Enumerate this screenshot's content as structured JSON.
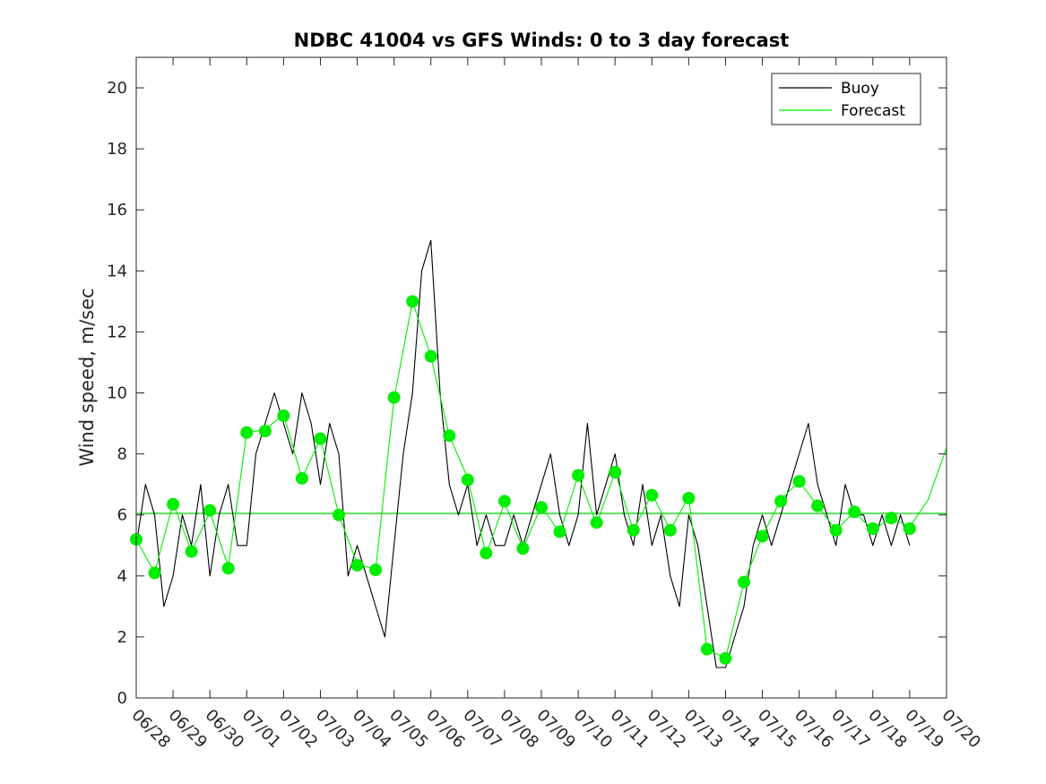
{
  "chart_data": {
    "type": "line",
    "title": "NDBC 41004 vs GFS Winds: 0 to 3 day forecast",
    "xlabel": "",
    "ylabel": "Wind speed, m/sec",
    "x_ticks": [
      "06/28",
      "06/29",
      "06/30",
      "07/01",
      "07/02",
      "07/03",
      "07/04",
      "07/05",
      "07/06",
      "07/07",
      "07/08",
      "07/09",
      "07/10",
      "07/11",
      "07/12",
      "07/13",
      "07/14",
      "07/15",
      "07/16",
      "07/17",
      "07/18",
      "07/19",
      "07/20"
    ],
    "x_range_days": [
      0,
      22
    ],
    "ylim": [
      0,
      21
    ],
    "y_ticks": [
      0,
      2,
      4,
      6,
      8,
      10,
      12,
      14,
      16,
      18,
      20
    ],
    "grid": false,
    "legend": {
      "location": "top-right",
      "entries": [
        {
          "name": "Buoy",
          "color": "#000000"
        },
        {
          "name": "Forecast",
          "color": "#00ee00"
        }
      ]
    },
    "mean_line": {
      "y": 6.05,
      "color": "#00cc00"
    },
    "series": [
      {
        "name": "Buoy",
        "color": "#000000",
        "x_day_offsets": [
          0,
          0.25,
          0.5,
          0.75,
          1,
          1.25,
          1.5,
          1.75,
          2,
          2.25,
          2.5,
          2.75,
          3,
          3.25,
          3.5,
          3.75,
          4,
          4.25,
          4.5,
          4.75,
          5,
          5.25,
          5.5,
          5.75,
          6,
          6.25,
          6.5,
          6.75,
          7,
          7.25,
          7.5,
          7.75,
          8,
          8.25,
          8.5,
          8.75,
          9,
          9.25,
          9.5,
          9.75,
          10,
          10.25,
          10.5,
          10.75,
          11,
          11.25,
          11.5,
          11.75,
          12,
          12.25,
          12.5,
          12.75,
          13,
          13.25,
          13.5,
          13.75,
          14,
          14.25,
          14.5,
          14.75,
          15,
          15.25,
          15.5,
          15.75,
          16,
          16.25,
          16.5,
          16.75,
          17,
          17.25,
          17.5,
          17.75,
          18,
          18.25,
          18.5,
          18.75,
          19,
          19.25,
          19.5,
          19.75,
          20,
          20.25,
          20.5,
          20.75,
          21
        ],
        "values": [
          5,
          7,
          6,
          3,
          4,
          6,
          5,
          7,
          4,
          6,
          7,
          5,
          5,
          8,
          9,
          10,
          9,
          8,
          10,
          9,
          7,
          9,
          8,
          4,
          5,
          4,
          3,
          2,
          5,
          8,
          10,
          14,
          15,
          10,
          7,
          6,
          7,
          5,
          6,
          5,
          5,
          6,
          5,
          6,
          7,
          8,
          6,
          5,
          6,
          9,
          6,
          7,
          8,
          6,
          5,
          7,
          5,
          6,
          4,
          3,
          6,
          5,
          3,
          1,
          1,
          2,
          3,
          5,
          6,
          5,
          6,
          7,
          8,
          9,
          7,
          6,
          5,
          7,
          6,
          6,
          5,
          6,
          5,
          6,
          5
        ]
      },
      {
        "name": "Forecast",
        "color": "#00ee00",
        "x_day_offsets": [
          0,
          0.5,
          1,
          1.5,
          2,
          2.5,
          3,
          3.5,
          4,
          4.5,
          5,
          5.5,
          6,
          6.5,
          7,
          7.5,
          8,
          8.5,
          9,
          9.5,
          10,
          10.5,
          11,
          11.5,
          12,
          12.5,
          13,
          13.5,
          14,
          14.5,
          15,
          15.5,
          16,
          16.5,
          17,
          17.5,
          18,
          18.5,
          19,
          19.5,
          20,
          20.5,
          21,
          21.5,
          22
        ],
        "values": [
          5.2,
          4.1,
          6.4,
          4.8,
          6.1,
          4.3,
          8.7,
          8.8,
          9.3,
          7.2,
          8.5,
          6.0,
          4.4,
          4.2,
          9.8,
          13.0,
          11.2,
          8.6,
          7.2,
          4.7,
          6.4,
          4.9,
          6.3,
          5.4,
          7.3,
          5.7,
          7.4,
          5.5,
          6.7,
          5.5,
          6.6,
          1.6,
          1.3,
          3.8,
          5.3,
          6.5,
          7.1,
          6.3,
          5.5,
          6.1,
          5.5,
          5.9,
          5.6,
          6.5,
          8.2
        ]
      }
    ],
    "forecast_markers": {
      "color": "#00ee00",
      "x_day_offsets": [
        0,
        0.5,
        1,
        1.5,
        2,
        2.5,
        3,
        3.5,
        4,
        4.5,
        5,
        5.5,
        6,
        6.5,
        7,
        7.5,
        8,
        8.5,
        9,
        9.5,
        10,
        10.5,
        11,
        11.5,
        12,
        12.5,
        13,
        13.5,
        14,
        14.5,
        15,
        15.5,
        16,
        16.5,
        17,
        17.5,
        18,
        18.5,
        19,
        19.5,
        20,
        20.5,
        21
      ],
      "values": [
        5.2,
        4.1,
        6.35,
        4.8,
        6.15,
        4.25,
        8.7,
        8.75,
        9.25,
        7.2,
        8.5,
        6.0,
        4.35,
        4.2,
        9.85,
        13.0,
        11.2,
        8.6,
        7.15,
        4.75,
        6.45,
        4.9,
        6.25,
        5.45,
        7.3,
        5.75,
        7.4,
        5.5,
        6.65,
        5.5,
        6.55,
        1.6,
        1.3,
        3.8,
        5.3,
        6.45,
        7.1,
        6.3,
        5.5,
        6.1,
        5.55,
        5.9,
        5.55
      ]
    }
  }
}
